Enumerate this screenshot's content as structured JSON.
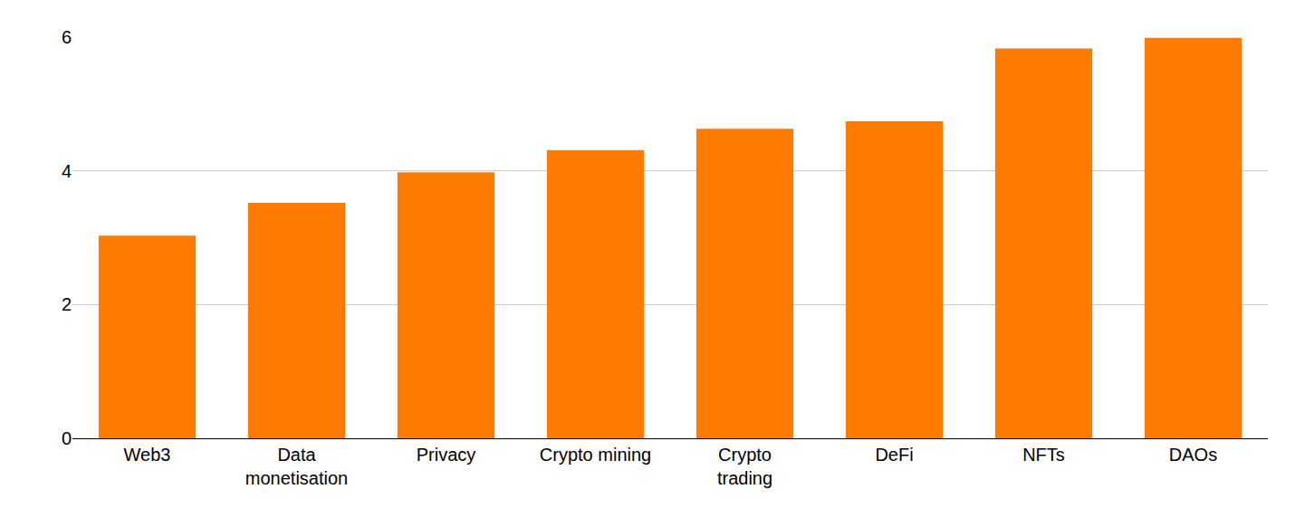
{
  "chart_data": {
    "type": "bar",
    "categories": [
      "Web3",
      "Data monetisation",
      "Privacy",
      "Crypto mining",
      "Crypto trading",
      "DeFi",
      "NFTs",
      "DAOs"
    ],
    "values": [
      3.03,
      3.52,
      3.98,
      4.31,
      4.63,
      4.74,
      5.83,
      5.99
    ],
    "color": "#ff7b00",
    "ylim": [
      0,
      6
    ],
    "yticks": [
      0,
      2,
      4,
      6
    ],
    "grid": true
  }
}
